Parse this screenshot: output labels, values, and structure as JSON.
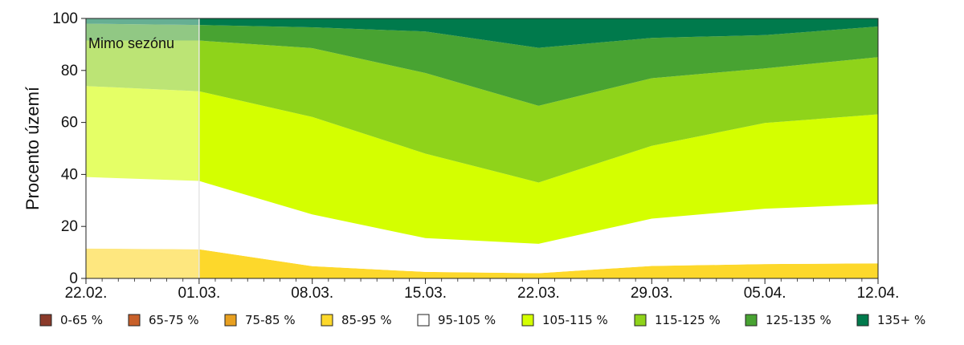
{
  "chart_data": {
    "type": "area",
    "stacked": true,
    "x": [
      "22.02.",
      "01.03.",
      "08.03.",
      "15.03.",
      "22.03.",
      "29.03.",
      "05.04.",
      "12.04."
    ],
    "xtick_labels": [
      "22.02.",
      "01.03.",
      "08.03.",
      "15.03.",
      "22.03.",
      "29.03.",
      "05.04.",
      "12.04."
    ],
    "ylabel": "Procento území",
    "ylim": [
      0,
      100
    ],
    "yticks": [
      0,
      20,
      40,
      60,
      80,
      100
    ],
    "grid": false,
    "legend_position": "bottom",
    "annotation": {
      "text": "Mimo sezónu",
      "x_from": "22.02.",
      "x_to": "01.03."
    },
    "series": [
      {
        "name": "0-65 %",
        "color": "#8B3A2A",
        "values": [
          0,
          0,
          0,
          0,
          0,
          0,
          0,
          0
        ]
      },
      {
        "name": "65-75 %",
        "color": "#C8602A",
        "values": [
          0,
          0,
          0,
          0,
          0,
          0,
          0,
          0
        ]
      },
      {
        "name": "75-85 %",
        "color": "#E8A020",
        "values": [
          0,
          0,
          0,
          0,
          0,
          0,
          0,
          0
        ]
      },
      {
        "name": "85-95 %",
        "color": "#FDD82B",
        "values": [
          11.5,
          11.2,
          4.7,
          2.5,
          2.0,
          4.8,
          5.5,
          5.8
        ]
      },
      {
        "name": "95-105 %",
        "color": "#FFFFFF",
        "values": [
          27.5,
          26.3,
          19.9,
          13.0,
          11.3,
          18.2,
          21.3,
          22.8
        ]
      },
      {
        "name": "105-115 %",
        "color": "#D4FF00",
        "values": [
          35.0,
          34.5,
          37.5,
          32.5,
          23.6,
          28.0,
          33.0,
          34.5
        ]
      },
      {
        "name": "115-125 %",
        "color": "#8FD31A",
        "values": [
          17.5,
          19.5,
          26.5,
          31.0,
          29.5,
          26.0,
          21.0,
          22.0
        ]
      },
      {
        "name": "125-135 %",
        "color": "#48A332",
        "values": [
          6.5,
          6.0,
          8.0,
          16.0,
          22.3,
          15.5,
          12.8,
          11.8
        ]
      },
      {
        "name": "135+ %",
        "color": "#007A4C",
        "values": [
          2.0,
          2.5,
          3.4,
          5.0,
          11.3,
          7.5,
          6.4,
          3.1
        ]
      }
    ]
  }
}
